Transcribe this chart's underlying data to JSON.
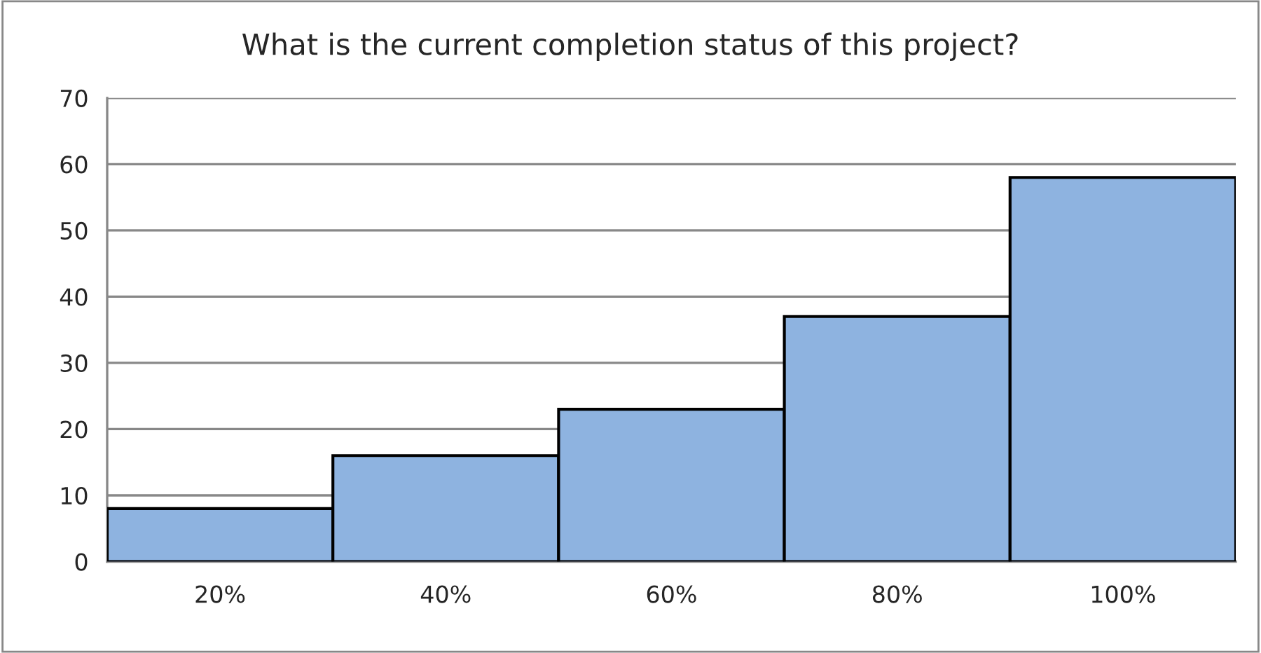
{
  "chart_data": {
    "type": "bar",
    "title": "What is the current completion status of this project?",
    "categories": [
      "20%",
      "40%",
      "60%",
      "80%",
      "100%"
    ],
    "values": [
      8,
      16,
      23,
      37,
      58
    ],
    "color": "#8eb3e0",
    "ylim": [
      0,
      70
    ],
    "yticks": [
      0,
      10,
      20,
      30,
      40,
      50,
      60,
      70
    ],
    "grid": "y"
  }
}
